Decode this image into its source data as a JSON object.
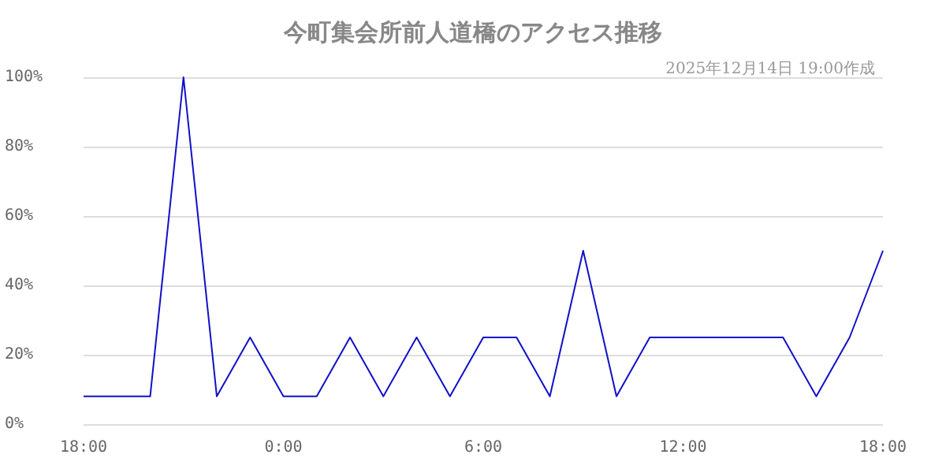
{
  "chart_data": {
    "type": "line",
    "title": "今町集会所前人道橋のアクセス推移",
    "subtitle": "2025年12月14日 19:00作成",
    "x": [
      "2025-12-13T18:00",
      "2025-12-13T19:00",
      "2025-12-13T20:00",
      "2025-12-13T21:00",
      "2025-12-13T22:00",
      "2025-12-13T23:00",
      "2025-12-14T00:00",
      "2025-12-14T01:00",
      "2025-12-14T02:00",
      "2025-12-14T03:00",
      "2025-12-14T04:00",
      "2025-12-14T05:00",
      "2025-12-14T06:00",
      "2025-12-14T07:00",
      "2025-12-14T08:00",
      "2025-12-14T09:00",
      "2025-12-14T10:00",
      "2025-12-14T11:00",
      "2025-12-14T12:00",
      "2025-12-14T13:00",
      "2025-12-14T14:00",
      "2025-12-14T15:00",
      "2025-12-14T16:00",
      "2025-12-14T17:00",
      "2025-12-14T18:00"
    ],
    "series": [
      {
        "color": "#1010c8",
        "values": [
          8,
          8,
          8,
          100,
          8,
          25,
          8,
          8,
          25,
          8,
          25,
          8,
          25,
          25,
          8,
          50,
          8,
          25,
          25,
          25,
          25,
          25,
          8,
          25,
          50
        ]
      }
    ],
    "xlim": [
      "2025-12-13T18:00",
      "2025-12-14T18:00"
    ],
    "xticks": [
      {
        "value": "2025-12-13T18:00",
        "label": "18:00"
      },
      {
        "value": "2025-12-14T00:00",
        "label": "0:00"
      },
      {
        "value": "2025-12-14T06:00",
        "label": "6:00"
      },
      {
        "value": "2025-12-14T12:00",
        "label": "12:00"
      },
      {
        "value": "2025-12-14T18:00",
        "label": "18:00"
      }
    ],
    "ylim": [
      0,
      100
    ],
    "yticks": [
      {
        "value": 0,
        "label": "0%"
      },
      {
        "value": 20,
        "label": "20%"
      },
      {
        "value": 40,
        "label": "40%"
      },
      {
        "value": 60,
        "label": "60%"
      },
      {
        "value": 80,
        "label": "80%"
      },
      {
        "value": 100,
        "label": "100%"
      }
    ],
    "grid": "y",
    "marker": "none",
    "line_style": "solid"
  }
}
